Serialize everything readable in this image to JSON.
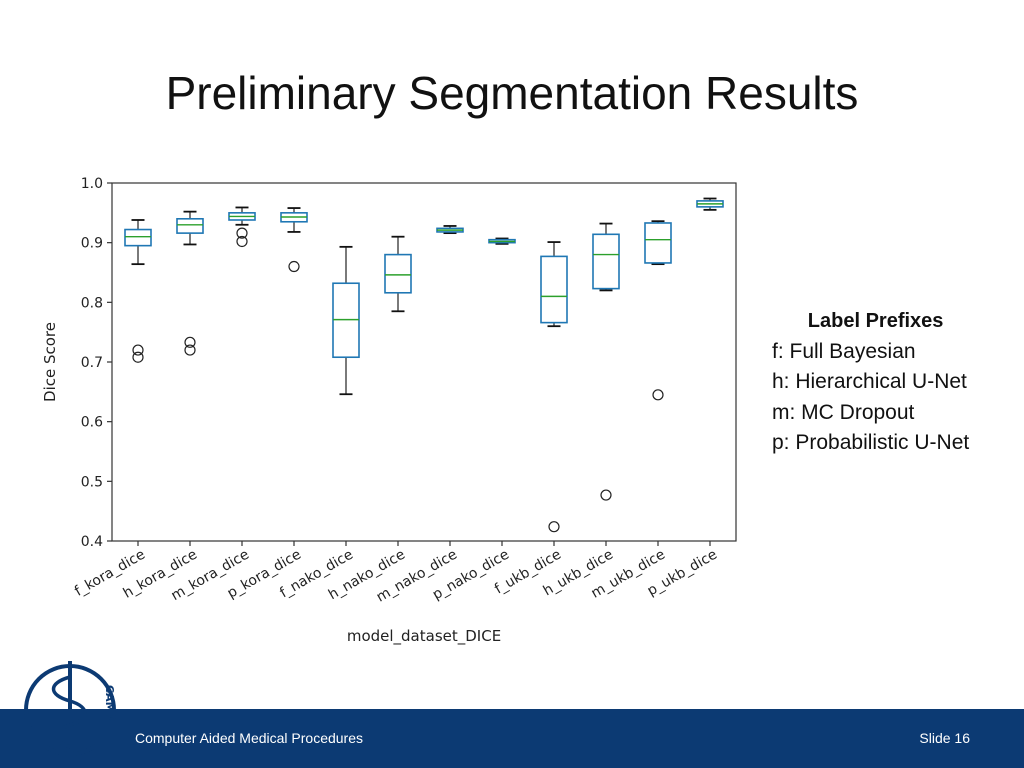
{
  "slide": {
    "title": "Preliminary Segmentation Results",
    "footer_text": "Computer Aided Medical Procedures",
    "slide_number": "Slide 16",
    "logo_text": "CAMP"
  },
  "legend_box": {
    "heading": "Label Prefixes",
    "items": [
      "f: Full Bayesian",
      "h: Hierarchical U-Net",
      "m: MC Dropout",
      "p: Probabilistic U-Net"
    ]
  },
  "colors": {
    "footer_bar": "#0c3a73",
    "box": "#1f77b4",
    "median": "#2ca02c"
  },
  "chart_data": {
    "type": "box",
    "xlabel": "model_dataset_DICE",
    "ylabel": "Dice Score",
    "ylim": [
      0.4,
      1.0
    ],
    "yticks": [
      "0.4",
      "0.5",
      "0.6",
      "0.7",
      "0.8",
      "0.9",
      "1.0"
    ],
    "grid": false,
    "categories": [
      "f_kora_dice",
      "h_kora_dice",
      "m_kora_dice",
      "p_kora_dice",
      "f_nako_dice",
      "h_nako_dice",
      "m_nako_dice",
      "p_nako_dice",
      "f_ukb_dice",
      "h_ukb_dice",
      "m_ukb_dice",
      "p_ukb_dice"
    ],
    "boxes": [
      {
        "whislo": 0.864,
        "q1": 0.895,
        "med": 0.91,
        "q3": 0.922,
        "whishi": 0.938,
        "fliers": [
          0.72,
          0.708
        ]
      },
      {
        "whislo": 0.897,
        "q1": 0.916,
        "med": 0.93,
        "q3": 0.94,
        "whishi": 0.952,
        "fliers": [
          0.733,
          0.72
        ]
      },
      {
        "whislo": 0.93,
        "q1": 0.938,
        "med": 0.944,
        "q3": 0.95,
        "whishi": 0.959,
        "fliers": [
          0.916,
          0.902
        ]
      },
      {
        "whislo": 0.918,
        "q1": 0.935,
        "med": 0.943,
        "q3": 0.95,
        "whishi": 0.958,
        "fliers": [
          0.86
        ]
      },
      {
        "whislo": 0.646,
        "q1": 0.708,
        "med": 0.771,
        "q3": 0.832,
        "whishi": 0.893,
        "fliers": []
      },
      {
        "whislo": 0.785,
        "q1": 0.816,
        "med": 0.846,
        "q3": 0.88,
        "whishi": 0.91,
        "fliers": []
      },
      {
        "whislo": 0.916,
        "q1": 0.918,
        "med": 0.921,
        "q3": 0.924,
        "whishi": 0.928,
        "fliers": []
      },
      {
        "whislo": 0.898,
        "q1": 0.9,
        "med": 0.902,
        "q3": 0.905,
        "whishi": 0.907,
        "fliers": []
      },
      {
        "whislo": 0.76,
        "q1": 0.766,
        "med": 0.81,
        "q3": 0.877,
        "whishi": 0.901,
        "fliers": [
          0.424
        ]
      },
      {
        "whislo": 0.82,
        "q1": 0.823,
        "med": 0.88,
        "q3": 0.914,
        "whishi": 0.932,
        "fliers": [
          0.477
        ]
      },
      {
        "whislo": 0.864,
        "q1": 0.866,
        "med": 0.905,
        "q3": 0.933,
        "whishi": 0.936,
        "fliers": [
          0.645
        ]
      },
      {
        "whislo": 0.955,
        "q1": 0.96,
        "med": 0.965,
        "q3": 0.97,
        "whishi": 0.974,
        "fliers": []
      }
    ]
  }
}
